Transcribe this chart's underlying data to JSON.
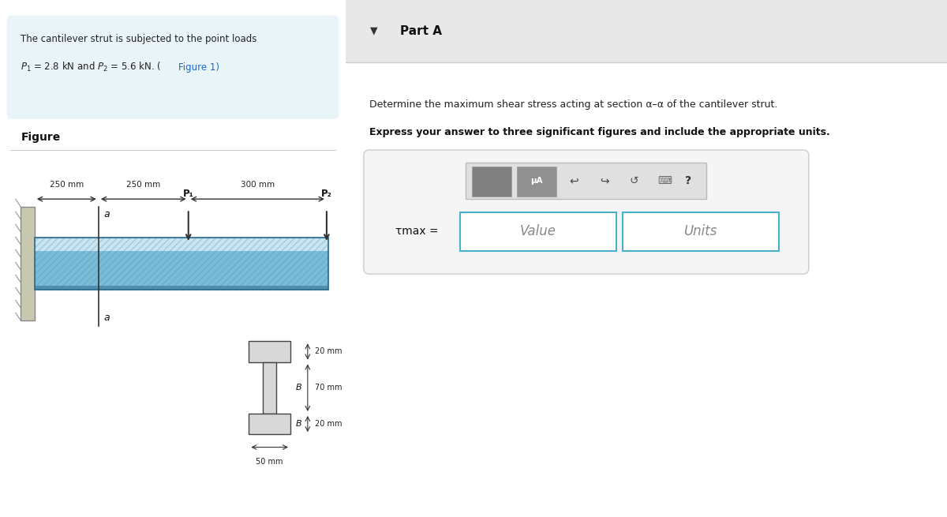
{
  "bg_color": "#ffffff",
  "left_panel_bg": "#e8f4f8",
  "problem_text_line1": "The cantilever strut is subjected to the point loads",
  "problem_text_line2": "P₁ = 2.8 kN and P₂ = 5.6 kN. (Figure 1)",
  "figure_label": "Figure",
  "part_a_header": "Part A",
  "part_a_triangle": "▼",
  "description_line1": "Determine the maximum shear stress acting at section α–α of the cantilever strut.",
  "description_line2": "Express your answer to three significant figures and include the appropriate units.",
  "tau_label": "τmax =",
  "value_placeholder": "Value",
  "units_placeholder": "Units",
  "beam_color_top": "#a8d4e8",
  "beam_color_bottom": "#5aaac8",
  "beam_color_hatch": "#7bbdd8",
  "wall_color": "#c8c0a8",
  "cross_section_color": "#d0d0d0",
  "dim_250_1": "250 mm",
  "dim_250_2": "250 mm",
  "dim_300": "300 mm",
  "dim_20_top": "20 mm",
  "dim_70": "70 mm",
  "dim_20_bot": "20 mm",
  "dim_50": "50 mm",
  "label_P1": "P₁",
  "label_P2": "P₂",
  "label_a_top": "a",
  "label_a_bot": "a",
  "label_B": "B",
  "section_line_color": "#333333",
  "toolbar_bg": "#e0e0e0",
  "input_border": "#4ab0d0",
  "divider_color": "#cccccc"
}
